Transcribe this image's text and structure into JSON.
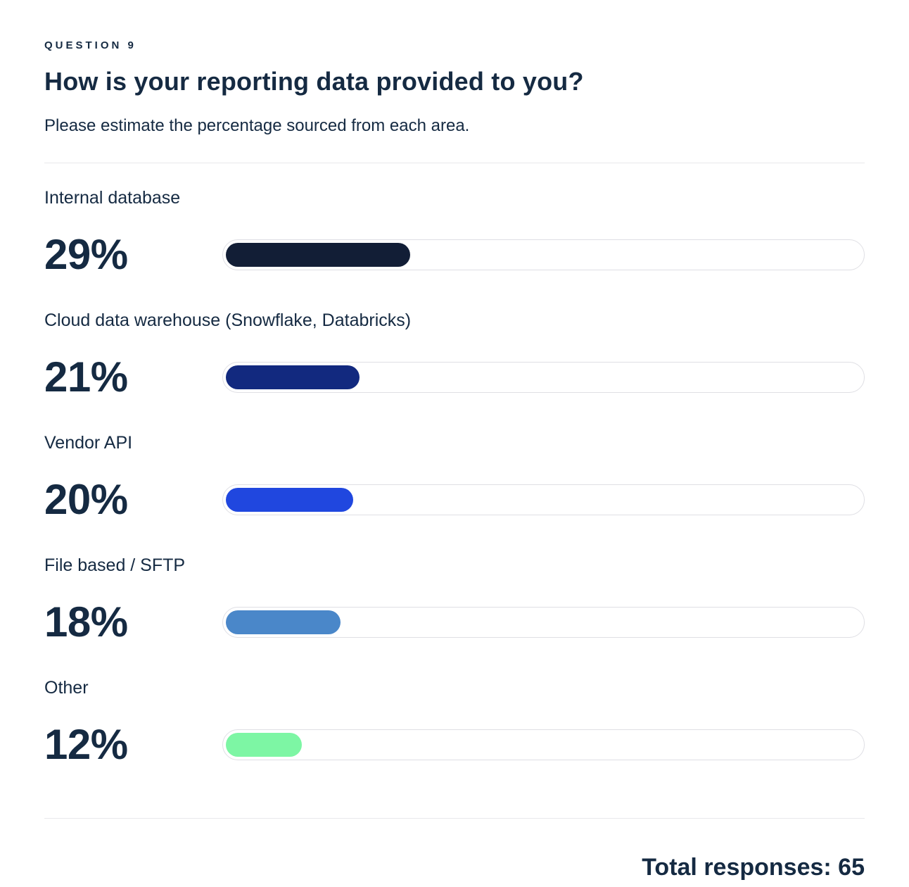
{
  "header": {
    "eyebrow": "QUESTION 9",
    "title": "How is your reporting data provided to you?",
    "subtitle": "Please estimate the percentage sourced from each area."
  },
  "chart_data": {
    "type": "bar",
    "orientation": "horizontal",
    "title": "How is your reporting data provided to you?",
    "categories": [
      "Internal database",
      "Cloud data warehouse (Snowflake, Databricks)",
      "Vendor API",
      "File based / SFTP",
      "Other"
    ],
    "values": [
      29,
      21,
      20,
      18,
      12
    ],
    "unit": "%",
    "xlim": [
      0,
      100
    ],
    "bar_colors": [
      "#121e36",
      "#12297f",
      "#2047df",
      "#4a87c9",
      "#7df6a4"
    ],
    "track_color": "#ffffff",
    "track_border_color": "#dfdfe4",
    "total_responses": 65
  },
  "rows": [
    {
      "label": "Internal database",
      "value_label": "29%"
    },
    {
      "label": "Cloud data warehouse (Snowflake, Databricks)",
      "value_label": "21%"
    },
    {
      "label": "Vendor API",
      "value_label": "20%"
    },
    {
      "label": "File based / SFTP",
      "value_label": "18%"
    },
    {
      "label": "Other",
      "value_label": "12%"
    }
  ],
  "footer": {
    "total_label": "Total responses: 65"
  }
}
